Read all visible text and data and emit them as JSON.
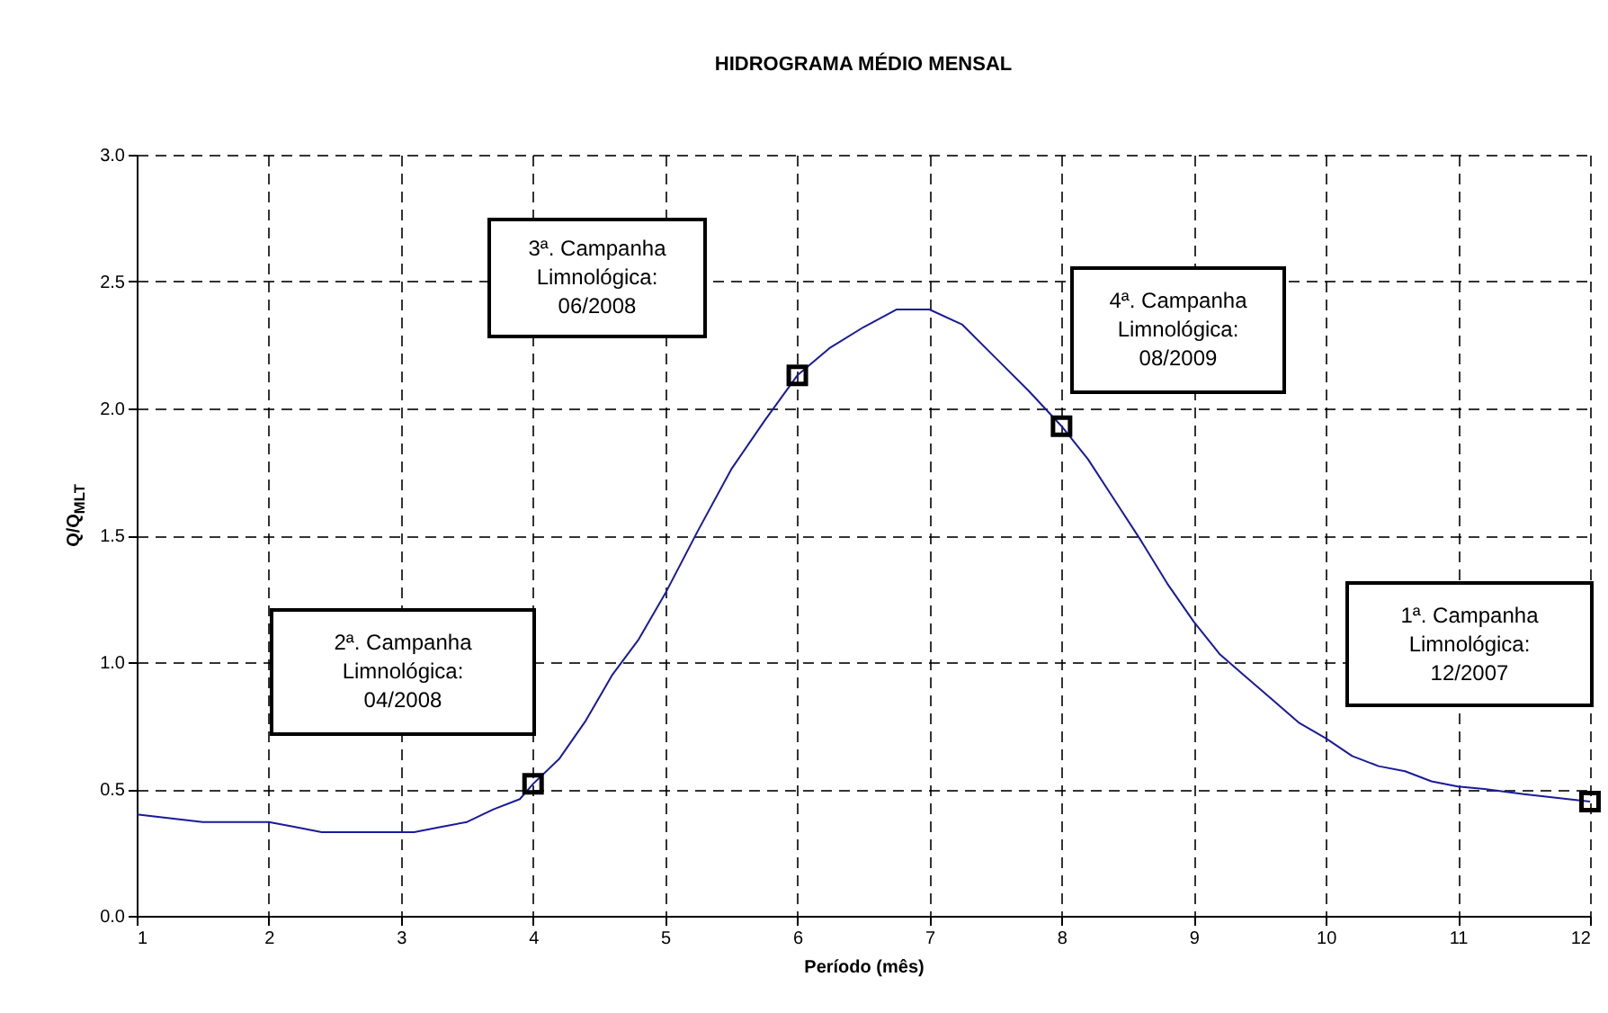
{
  "chart_data": {
    "type": "line",
    "title": "HIDROGRAMA MÉDIO MENSAL",
    "xlabel": "Período (mês)",
    "ylabel": "Q/Q$_{MLT}$",
    "xlim": [
      1,
      12
    ],
    "xticks": [
      1,
      2,
      3,
      4,
      5,
      6,
      7,
      8,
      9,
      10,
      11,
      12
    ],
    "ylim": [
      0,
      3
    ],
    "yticks": [
      {
        "value": 0,
        "label": "0.0"
      },
      {
        "value": 0.5,
        "label": "0.5"
      },
      {
        "value": 1,
        "label": "1.0"
      },
      {
        "value": 1.5,
        "label": "1.5"
      },
      {
        "value": 2,
        "label": "2.0"
      },
      {
        "value": 2.5,
        "label": "2.5"
      },
      {
        "value": 3,
        "label": "3.0"
      }
    ],
    "grid": true,
    "series": [
      {
        "color": "#1a1a9c",
        "x": [
          1,
          1.5,
          2,
          2.2,
          2.4,
          3.1,
          3.3,
          3.5,
          3.7,
          3.9,
          4,
          4.2,
          4.4,
          4.6,
          4.8,
          5,
          5.25,
          5.5,
          5.75,
          6,
          6.25,
          6.5,
          6.75,
          7,
          7.25,
          7.5,
          7.75,
          8,
          8.2,
          8.4,
          8.6,
          8.8,
          9,
          9.2,
          9.4,
          9.6,
          9.8,
          10,
          10.2,
          10.4,
          10.6,
          10.8,
          11,
          11.2,
          11.5,
          12
        ],
        "values": [
          0.4,
          0.37,
          0.37,
          0.35,
          0.33,
          0.33,
          0.35,
          0.37,
          0.42,
          0.46,
          0.52,
          0.62,
          0.77,
          0.95,
          1.09,
          1.27,
          1.52,
          1.76,
          1.95,
          2.13,
          2.24,
          2.32,
          2.39,
          2.39,
          2.33,
          2.2,
          2.07,
          1.93,
          1.8,
          1.64,
          1.48,
          1.31,
          1.16,
          1.03,
          0.94,
          0.85,
          0.76,
          0.7,
          0.63,
          0.59,
          0.57,
          0.53,
          0.51,
          0.5,
          0.48,
          0.45
        ]
      },
      {
        "type": "scatter",
        "color": "#000000",
        "marker": "square",
        "x": [
          4,
          6,
          8,
          12
        ],
        "values": [
          0.52,
          2.13,
          1.93,
          0.45
        ]
      }
    ],
    "annotations": [
      "2ª. Campanha\nLimnológica:\n04/2008",
      "3ª. Campanha\nLimnológica:\n06/2008",
      "4ª. Campanha\nLimnológica:\n08/2009",
      "1ª. Campanha\nLimnológica:\n12/2007"
    ]
  }
}
